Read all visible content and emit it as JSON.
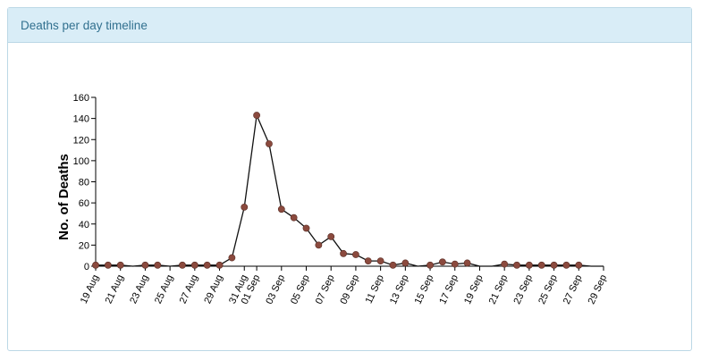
{
  "panel": {
    "title": "Deaths per day timeline"
  },
  "colors": {
    "header_bg": "#d9edf7",
    "header_text": "#31708f",
    "line": "#111111",
    "point": "#8b4a3e"
  },
  "chart_data": {
    "type": "line",
    "title": "",
    "xlabel": "",
    "ylabel": "No. of Deaths",
    "ylim": [
      0,
      160
    ],
    "yticks": [
      0,
      20,
      40,
      60,
      80,
      100,
      120,
      140,
      160
    ],
    "xlim": [
      "19 Aug",
      "29 Sep"
    ],
    "xtick_labels": [
      "19 Aug",
      "21 Aug",
      "23 Aug",
      "25 Aug",
      "27 Aug",
      "29 Aug",
      "31 Aug",
      "01 Sep",
      "03 Sep",
      "05 Sep",
      "07 Sep",
      "09 Sep",
      "11 Sep",
      "13 Sep",
      "15 Sep",
      "17 Sep",
      "19 Sep",
      "21 Sep",
      "23 Sep",
      "25 Sep",
      "27 Sep",
      "29 Sep"
    ],
    "series": [
      {
        "values": [
          {
            "x": "19 Aug",
            "y": 1
          },
          {
            "x": "20 Aug",
            "y": 1
          },
          {
            "x": "21 Aug",
            "y": 1
          },
          {
            "x": "23 Aug",
            "y": 1
          },
          {
            "x": "24 Aug",
            "y": 1
          },
          {
            "x": "26 Aug",
            "y": 1
          },
          {
            "x": "27 Aug",
            "y": 1
          },
          {
            "x": "28 Aug",
            "y": 1
          },
          {
            "x": "29 Aug",
            "y": 1
          },
          {
            "x": "30 Aug",
            "y": 8
          },
          {
            "x": "31 Aug",
            "y": 56
          },
          {
            "x": "01 Sep",
            "y": 143
          },
          {
            "x": "02 Sep",
            "y": 116
          },
          {
            "x": "03 Sep",
            "y": 54
          },
          {
            "x": "04 Sep",
            "y": 46
          },
          {
            "x": "05 Sep",
            "y": 36
          },
          {
            "x": "06 Sep",
            "y": 20
          },
          {
            "x": "07 Sep",
            "y": 28
          },
          {
            "x": "08 Sep",
            "y": 12
          },
          {
            "x": "09 Sep",
            "y": 11
          },
          {
            "x": "10 Sep",
            "y": 5
          },
          {
            "x": "11 Sep",
            "y": 5
          },
          {
            "x": "12 Sep",
            "y": 1
          },
          {
            "x": "13 Sep",
            "y": 3
          },
          {
            "x": "15 Sep",
            "y": 1
          },
          {
            "x": "16 Sep",
            "y": 4
          },
          {
            "x": "17 Sep",
            "y": 2
          },
          {
            "x": "18 Sep",
            "y": 3
          },
          {
            "x": "21 Sep",
            "y": 2
          },
          {
            "x": "22 Sep",
            "y": 1
          },
          {
            "x": "23 Sep",
            "y": 1
          },
          {
            "x": "24 Sep",
            "y": 1
          },
          {
            "x": "25 Sep",
            "y": 1
          },
          {
            "x": "26 Sep",
            "y": 1
          },
          {
            "x": "27 Sep",
            "y": 1
          }
        ],
        "line_only": [
          {
            "x": "22 Aug",
            "y": 0
          },
          {
            "x": "25 Aug",
            "y": 0
          },
          {
            "x": "14 Sep",
            "y": 0
          },
          {
            "x": "19 Sep",
            "y": 0
          },
          {
            "x": "20 Sep",
            "y": 0
          },
          {
            "x": "28 Sep",
            "y": 0
          },
          {
            "x": "29 Sep",
            "y": 0
          }
        ]
      }
    ],
    "grid": false,
    "legend": "none"
  }
}
